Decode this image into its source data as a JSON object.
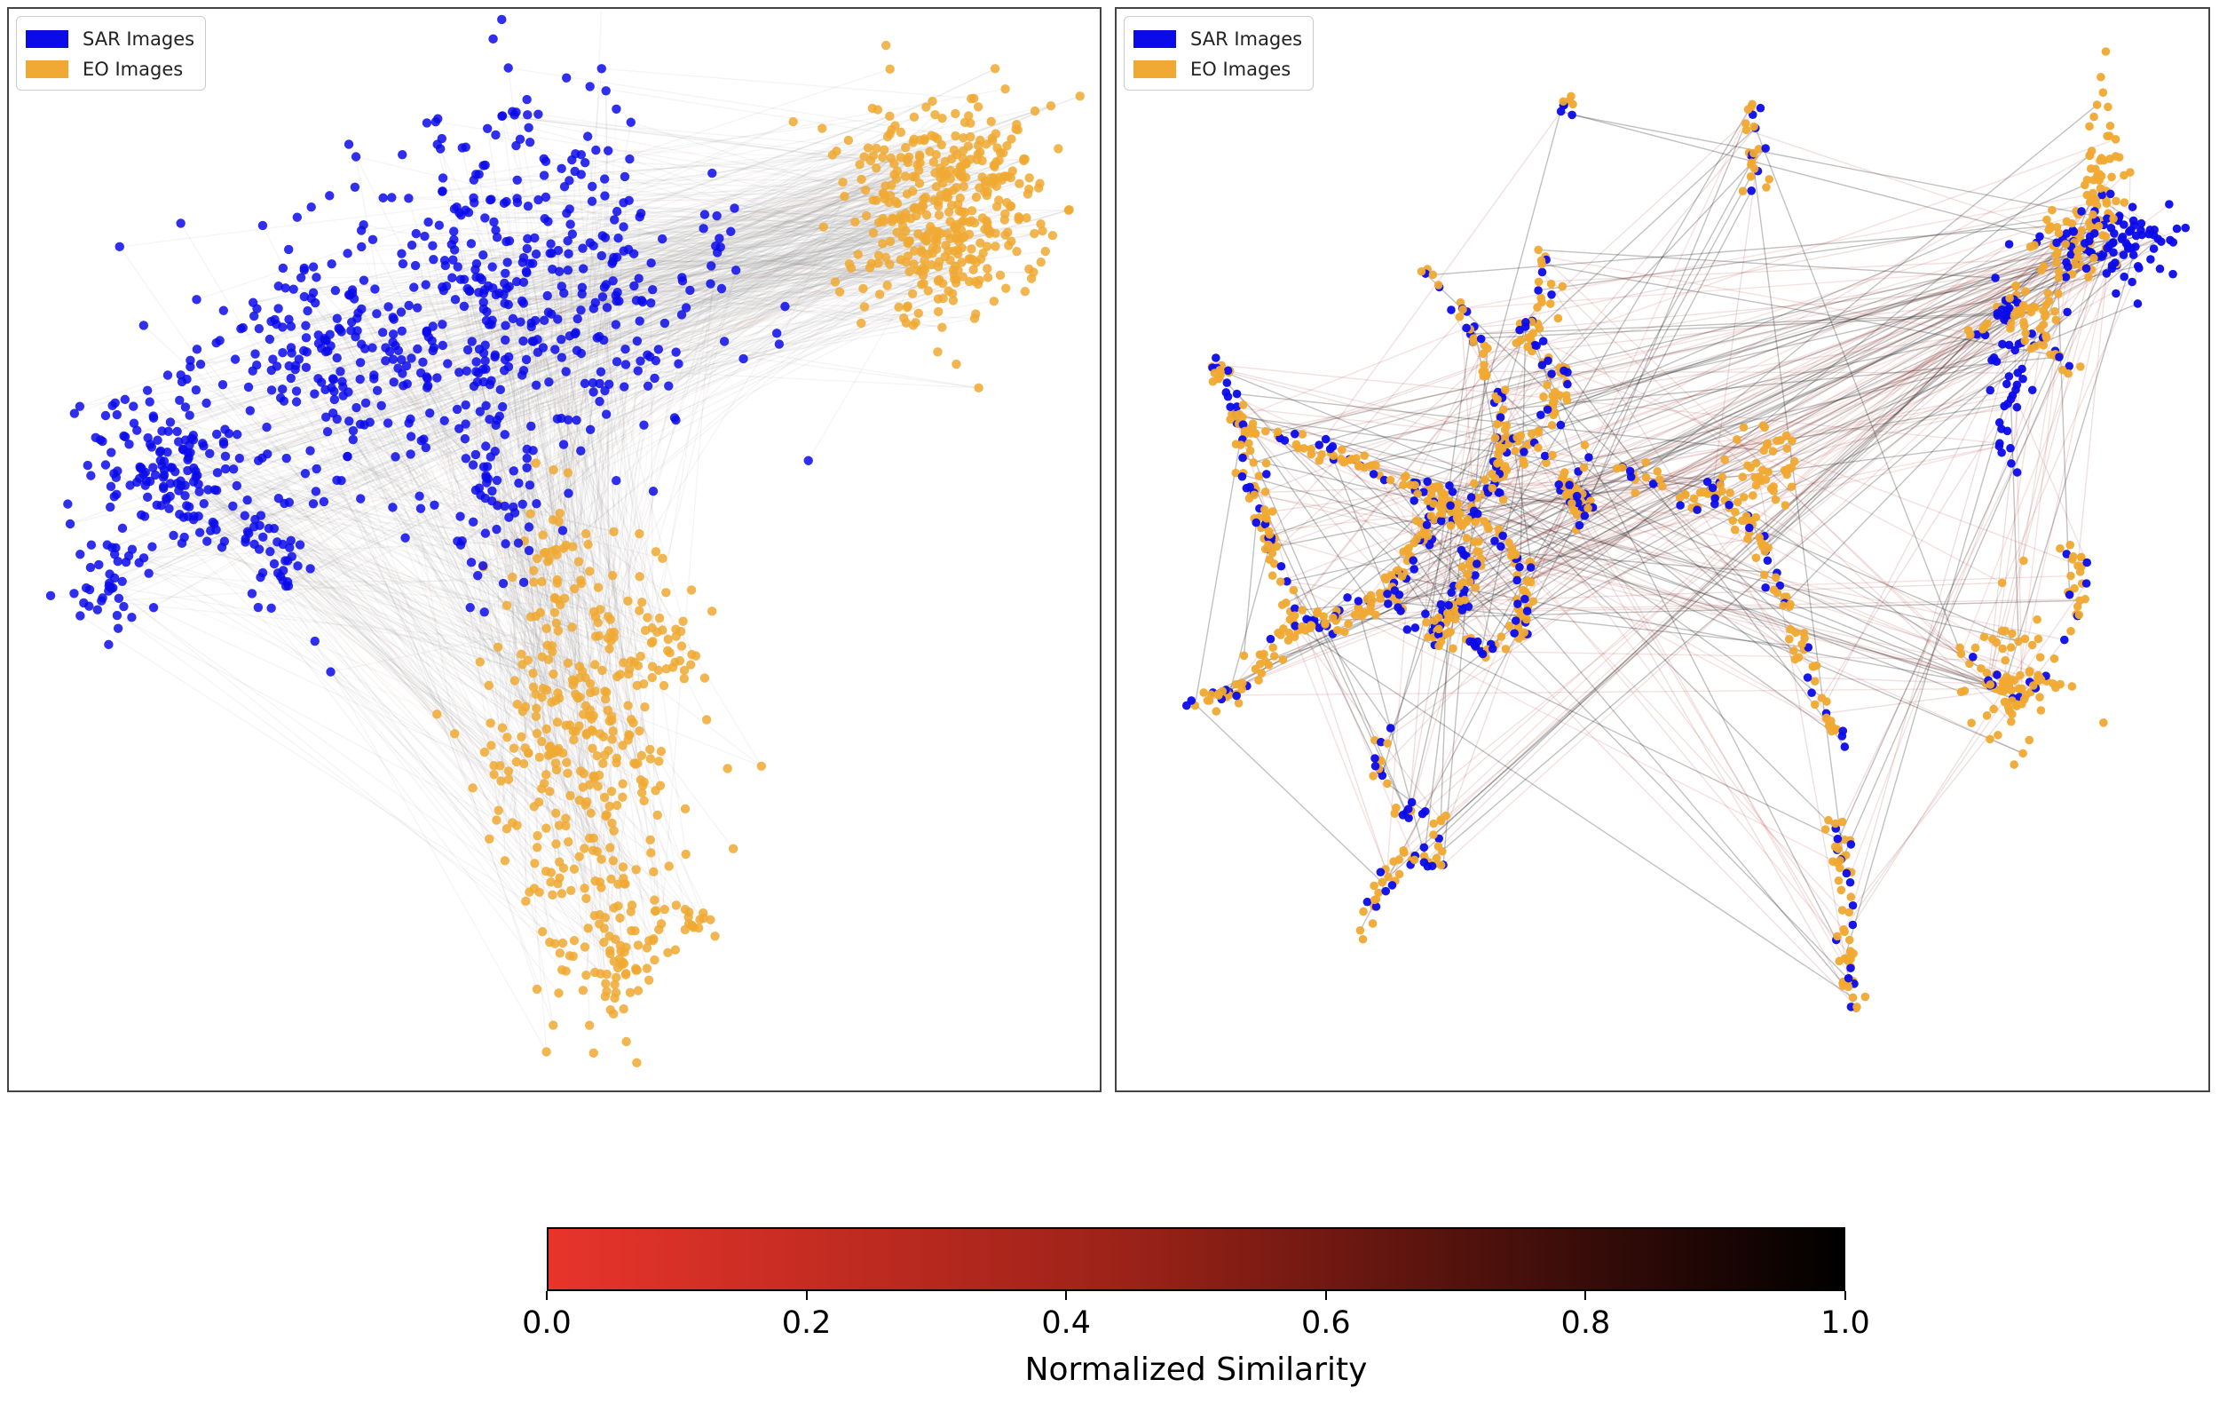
{
  "legend": {
    "sar_label": "SAR Images",
    "eo_label": "EO Images",
    "sar_color": "#0b0bea",
    "eo_color": "#f0a932"
  },
  "chart_data": [
    {
      "type": "scatter",
      "title": "",
      "xlabel": "",
      "ylabel": "",
      "xlim": [
        0,
        100
      ],
      "ylim": [
        0,
        100
      ],
      "legend_position": "top-left",
      "description": "Embedding projection: SAR points (blue) upper-left arc, EO points (orange) upper-right blob and lower clusters; gray lines join matched pairs",
      "series": [
        {
          "name": "SAR Images",
          "color": "#0b0bea",
          "clusters": [
            {
              "cx": 46,
              "cy": 76,
              "sx": 10,
              "sy": 9,
              "n": 420
            },
            {
              "cx": 29,
              "cy": 68,
              "sx": 7,
              "sy": 7,
              "n": 170
            },
            {
              "cx": 12,
              "cy": 58,
              "sx": 4,
              "sy": 4,
              "n": 150
            },
            {
              "cx": 7,
              "cy": 47,
              "sx": 2,
              "sy": 3,
              "n": 40
            },
            {
              "cx": 22,
              "cy": 50,
              "sx": 3,
              "sy": 4,
              "n": 50
            },
            {
              "cx": 44,
              "cy": 55,
              "sx": 3,
              "sy": 4,
              "n": 50
            }
          ]
        },
        {
          "name": "EO Images",
          "color": "#f0a932",
          "clusters": [
            {
              "cx": 88,
              "cy": 84,
              "sx": 5,
              "sy": 6,
              "n": 400
            },
            {
              "cx": 53,
              "cy": 32,
              "sx": 5,
              "sy": 8,
              "n": 260
            },
            {
              "cx": 55,
              "cy": 12,
              "sx": 4,
              "sy": 5,
              "n": 110
            },
            {
              "cx": 60,
              "cy": 41,
              "sx": 2,
              "sy": 2,
              "n": 30
            },
            {
              "cx": 64,
              "cy": 14,
              "sx": 1,
              "sy": 1,
              "n": 12
            },
            {
              "cx": 50,
              "cy": 48,
              "sx": 2,
              "sy": 4,
              "n": 40
            }
          ]
        }
      ]
    },
    {
      "type": "scatter",
      "title": "",
      "xlabel": "",
      "ylabel": "",
      "xlim": [
        0,
        100
      ],
      "ylim": [
        0,
        100
      ],
      "legend_position": "top-left",
      "description": "Embedding projection: SAR and EO points interleaved along thin filament structures; lines join matched pairs, colored by normalized similarity",
      "series": [
        {
          "name": "SAR Images",
          "color": "#0b0bea",
          "clusters": [
            {
              "cx": 94,
              "cy": 80,
              "sx": 3,
              "sy": 2,
              "n": 90
            },
            {
              "cx": 84,
              "cy": 68,
              "sx": 1,
              "sy": 5,
              "n": 40
            }
          ]
        },
        {
          "name": "EO Images",
          "color": "#f0a932",
          "clusters": [
            {
              "cx": 93,
              "cy": 86,
              "sx": 1,
              "sy": 4,
              "n": 60
            },
            {
              "cx": 89,
              "cy": 80,
              "sx": 2,
              "sy": 2,
              "n": 40
            },
            {
              "cx": 86,
              "cy": 74,
              "sx": 2,
              "sy": 1,
              "n": 30
            },
            {
              "cx": 84,
              "cy": 37,
              "sx": 3,
              "sy": 4,
              "n": 60
            },
            {
              "cx": 60,
              "cy": 58,
              "sx": 2,
              "sy": 2,
              "n": 40
            }
          ]
        }
      ],
      "filaments": [
        {
          "points": [
            [
              6,
              70
            ],
            [
              9,
              62
            ],
            [
              11,
              52
            ],
            [
              14,
              43
            ],
            [
              9,
              36
            ],
            [
              3,
              35
            ]
          ],
          "n": 140
        },
        {
          "points": [
            [
              9,
              62
            ],
            [
              17,
              60
            ],
            [
              24,
              57
            ],
            [
              29,
              55
            ],
            [
              26,
              50
            ],
            [
              23,
              46
            ],
            [
              18,
              43
            ],
            [
              14,
              43
            ]
          ],
          "n": 180
        },
        {
          "points": [
            [
              29,
              55
            ],
            [
              32,
              50
            ],
            [
              30,
              45
            ],
            [
              28,
              42
            ]
          ],
          "n": 80
        },
        {
          "points": [
            [
              27,
              78
            ],
            [
              31,
              73
            ],
            [
              33,
              67
            ],
            [
              35,
              62
            ],
            [
              34,
              58
            ],
            [
              33,
              55
            ]
          ],
          "n": 80
        },
        {
          "points": [
            [
              38,
              80
            ],
            [
              39,
              75
            ],
            [
              36,
              71
            ],
            [
              40,
              68
            ],
            [
              39,
              63
            ],
            [
              36,
              60
            ],
            [
              41,
              57
            ],
            [
              42,
              52
            ]
          ],
          "n": 100
        },
        {
          "points": [
            [
              23,
              46
            ],
            [
              26,
              42
            ],
            [
              31,
              41
            ],
            [
              33,
              40
            ],
            [
              36,
              42
            ],
            [
              37,
              45
            ],
            [
              36,
              49
            ],
            [
              33,
              53
            ],
            [
              31,
              56
            ]
          ],
          "n": 100
        },
        {
          "points": [
            [
              22,
              32
            ],
            [
              22,
              28
            ],
            [
              24,
              24
            ],
            [
              28,
              24
            ],
            [
              28,
              19
            ],
            [
              25,
              20
            ],
            [
              22,
              16
            ],
            [
              21,
              12
            ]
          ],
          "n": 70
        },
        {
          "points": [
            [
              46,
              58
            ],
            [
              50,
              56
            ],
            [
              53,
              54
            ],
            [
              55,
              56
            ],
            [
              57,
              54
            ],
            [
              59,
              52
            ],
            [
              60,
              49
            ],
            [
              62,
              45
            ],
            [
              64,
              39
            ],
            [
              66,
              34
            ],
            [
              68,
              31
            ]
          ],
          "n": 110
        },
        {
          "points": [
            [
              42,
              60
            ],
            [
              41,
              55
            ],
            [
              43,
              54
            ]
          ],
          "n": 30
        },
        {
          "points": [
            [
              41,
              94
            ],
            [
              41,
              94
            ]
          ],
          "n": 8
        },
        {
          "points": [
            [
              59,
              94
            ],
            [
              59,
              89
            ],
            [
              59,
              86
            ]
          ],
          "n": 25
        },
        {
          "points": [
            [
              67,
              23
            ],
            [
              68,
              18
            ],
            [
              68,
              10
            ],
            [
              69,
              5
            ]
          ],
          "n": 60
        },
        {
          "points": [
            [
              81,
              38
            ],
            [
              84,
              35
            ],
            [
              87,
              37
            ],
            [
              90,
              41
            ],
            [
              91,
              47
            ],
            [
              90,
              50
            ]
          ],
          "n": 60
        },
        {
          "points": [
            [
              80,
              71
            ],
            [
              84,
              73
            ],
            [
              87,
              70
            ],
            [
              90,
              68
            ]
          ],
          "n": 40
        }
      ]
    }
  ],
  "colorbar": {
    "title": "Normalized Similarity",
    "ticks": [
      "0.0",
      "0.2",
      "0.4",
      "0.6",
      "0.8",
      "1.0"
    ],
    "tick_values": [
      0.0,
      0.2,
      0.4,
      0.6,
      0.8,
      1.0
    ],
    "range": [
      0.0,
      1.0
    ],
    "color_low": "#e8342b",
    "color_high": "#000000"
  }
}
